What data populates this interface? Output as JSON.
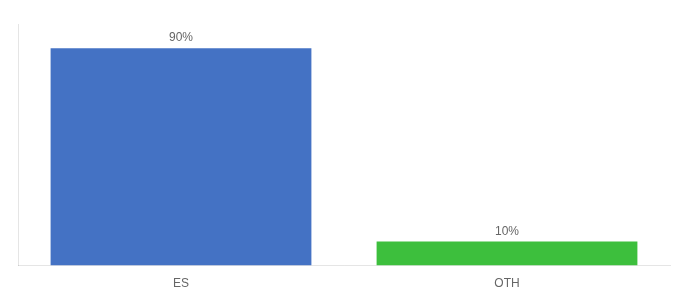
{
  "chart_data": {
    "type": "bar",
    "categories": [
      "ES",
      "OTH"
    ],
    "values": [
      90,
      10
    ],
    "value_labels": [
      "90%",
      "10%"
    ],
    "colors": [
      "#4472c4",
      "#3dbf3d"
    ],
    "ylim": [
      0,
      100
    ],
    "data_labels": true,
    "tick_labels": "x",
    "grid": false
  }
}
